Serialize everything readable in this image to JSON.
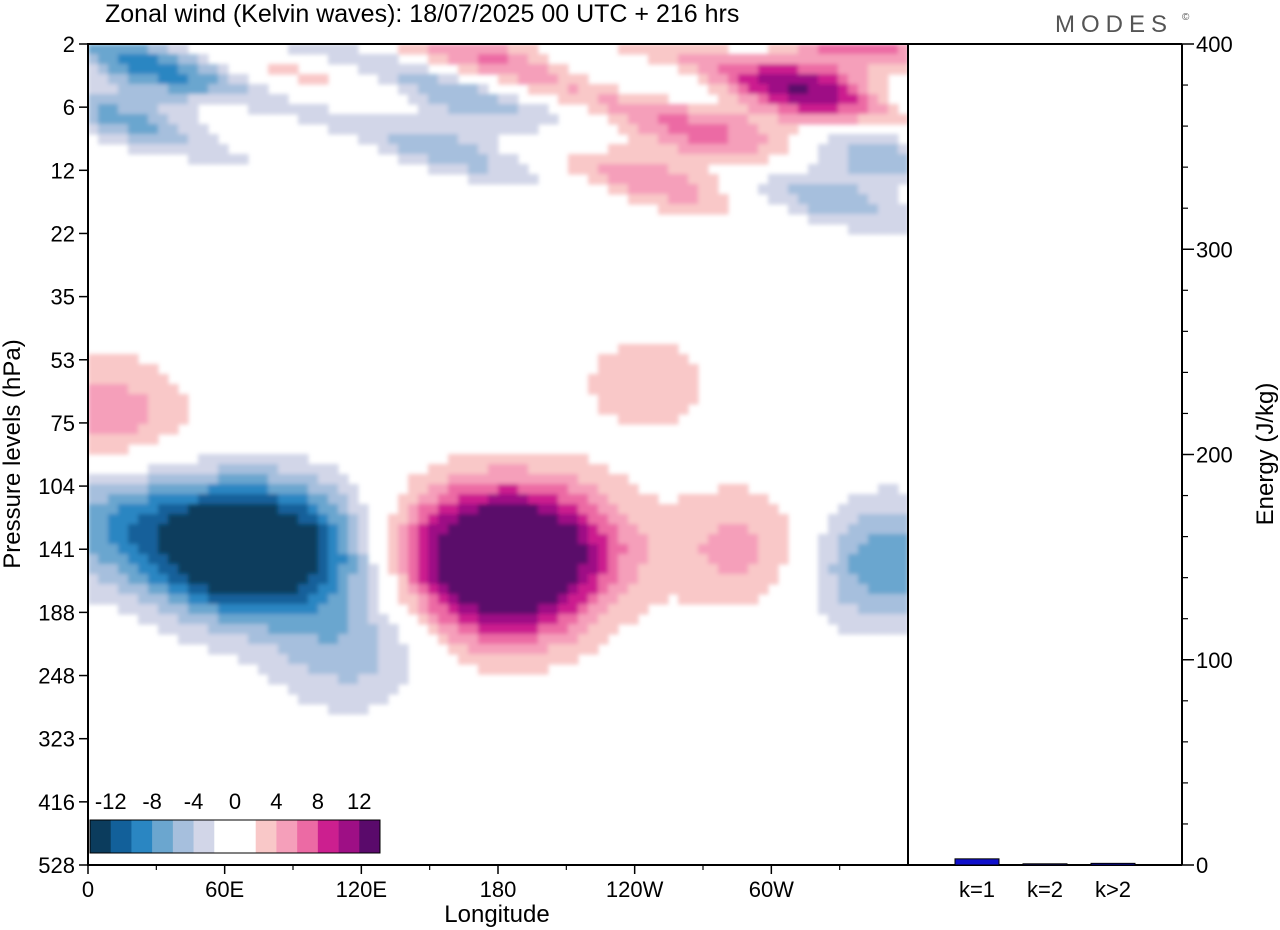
{
  "brand": "MODES",
  "brand_mark": "©",
  "colors": {
    "neg": [
      "#0b3c5d",
      "#12609a",
      "#2a86c2",
      "#6ba6cf",
      "#a6bfdd",
      "#d2d6e8"
    ],
    "pos": [
      "#f9c8c8",
      "#f59fba",
      "#ec6aa4",
      "#cc1f8f",
      "#9e0f85",
      "#5a0a6b"
    ],
    "bar": "#1010cc"
  },
  "chart_data": [
    {
      "type": "heatmap",
      "title": "Zonal wind (Kelvin waves):  18/07/2025  00 UTC  + 216 hrs",
      "xlabel": "Longitude",
      "ylabel": "Pressure levels (hPa)",
      "x_ticks": [
        "0",
        "60E",
        "120E",
        "180",
        "120W",
        "60W"
      ],
      "y_ticks": [
        "2",
        "6",
        "12",
        "22",
        "35",
        "53",
        "75",
        "104",
        "141",
        "188",
        "248",
        "323",
        "416",
        "528"
      ],
      "colorbar_labels": [
        "-12",
        "-8",
        "-4",
        "0",
        "4",
        "8",
        "12"
      ],
      "anomalies": [
        {
          "lon": 60,
          "level": 141,
          "value": -14
        },
        {
          "lon": 92,
          "level": 141,
          "value": -9
        },
        {
          "lon": 10,
          "level": 120,
          "value": -7
        },
        {
          "lon": 115,
          "level": 220,
          "value": -5
        },
        {
          "lon": 25,
          "level": 4,
          "value": -7
        },
        {
          "lon": 165,
          "level": 6,
          "value": -7
        },
        {
          "lon": 330,
          "level": 10,
          "value": -9
        },
        {
          "lon": 348,
          "level": 150,
          "value": -8
        },
        {
          "lon": 168,
          "level": 141,
          "value": 11
        },
        {
          "lon": 200,
          "level": 141,
          "value": 11
        },
        {
          "lon": 182,
          "level": 180,
          "value": 6
        },
        {
          "lon": 245,
          "level": 60,
          "value": 3
        },
        {
          "lon": 290,
          "level": 141,
          "value": 5
        },
        {
          "lon": 320,
          "level": 5,
          "value": 13
        },
        {
          "lon": 180,
          "level": 2,
          "value": 8
        },
        {
          "lon": 8,
          "level": 75,
          "value": 6
        },
        {
          "lon": 255,
          "level": 10,
          "value": 5
        }
      ]
    },
    {
      "type": "bar",
      "categories": [
        "k=1",
        "k=2",
        "k>2"
      ],
      "values": [
        3,
        0.5,
        0.8
      ],
      "ylabel": "Energy (J/kg)",
      "ylim": [
        0,
        400
      ],
      "y_ticks": [
        "0",
        "100",
        "200",
        "300",
        "400"
      ]
    }
  ]
}
